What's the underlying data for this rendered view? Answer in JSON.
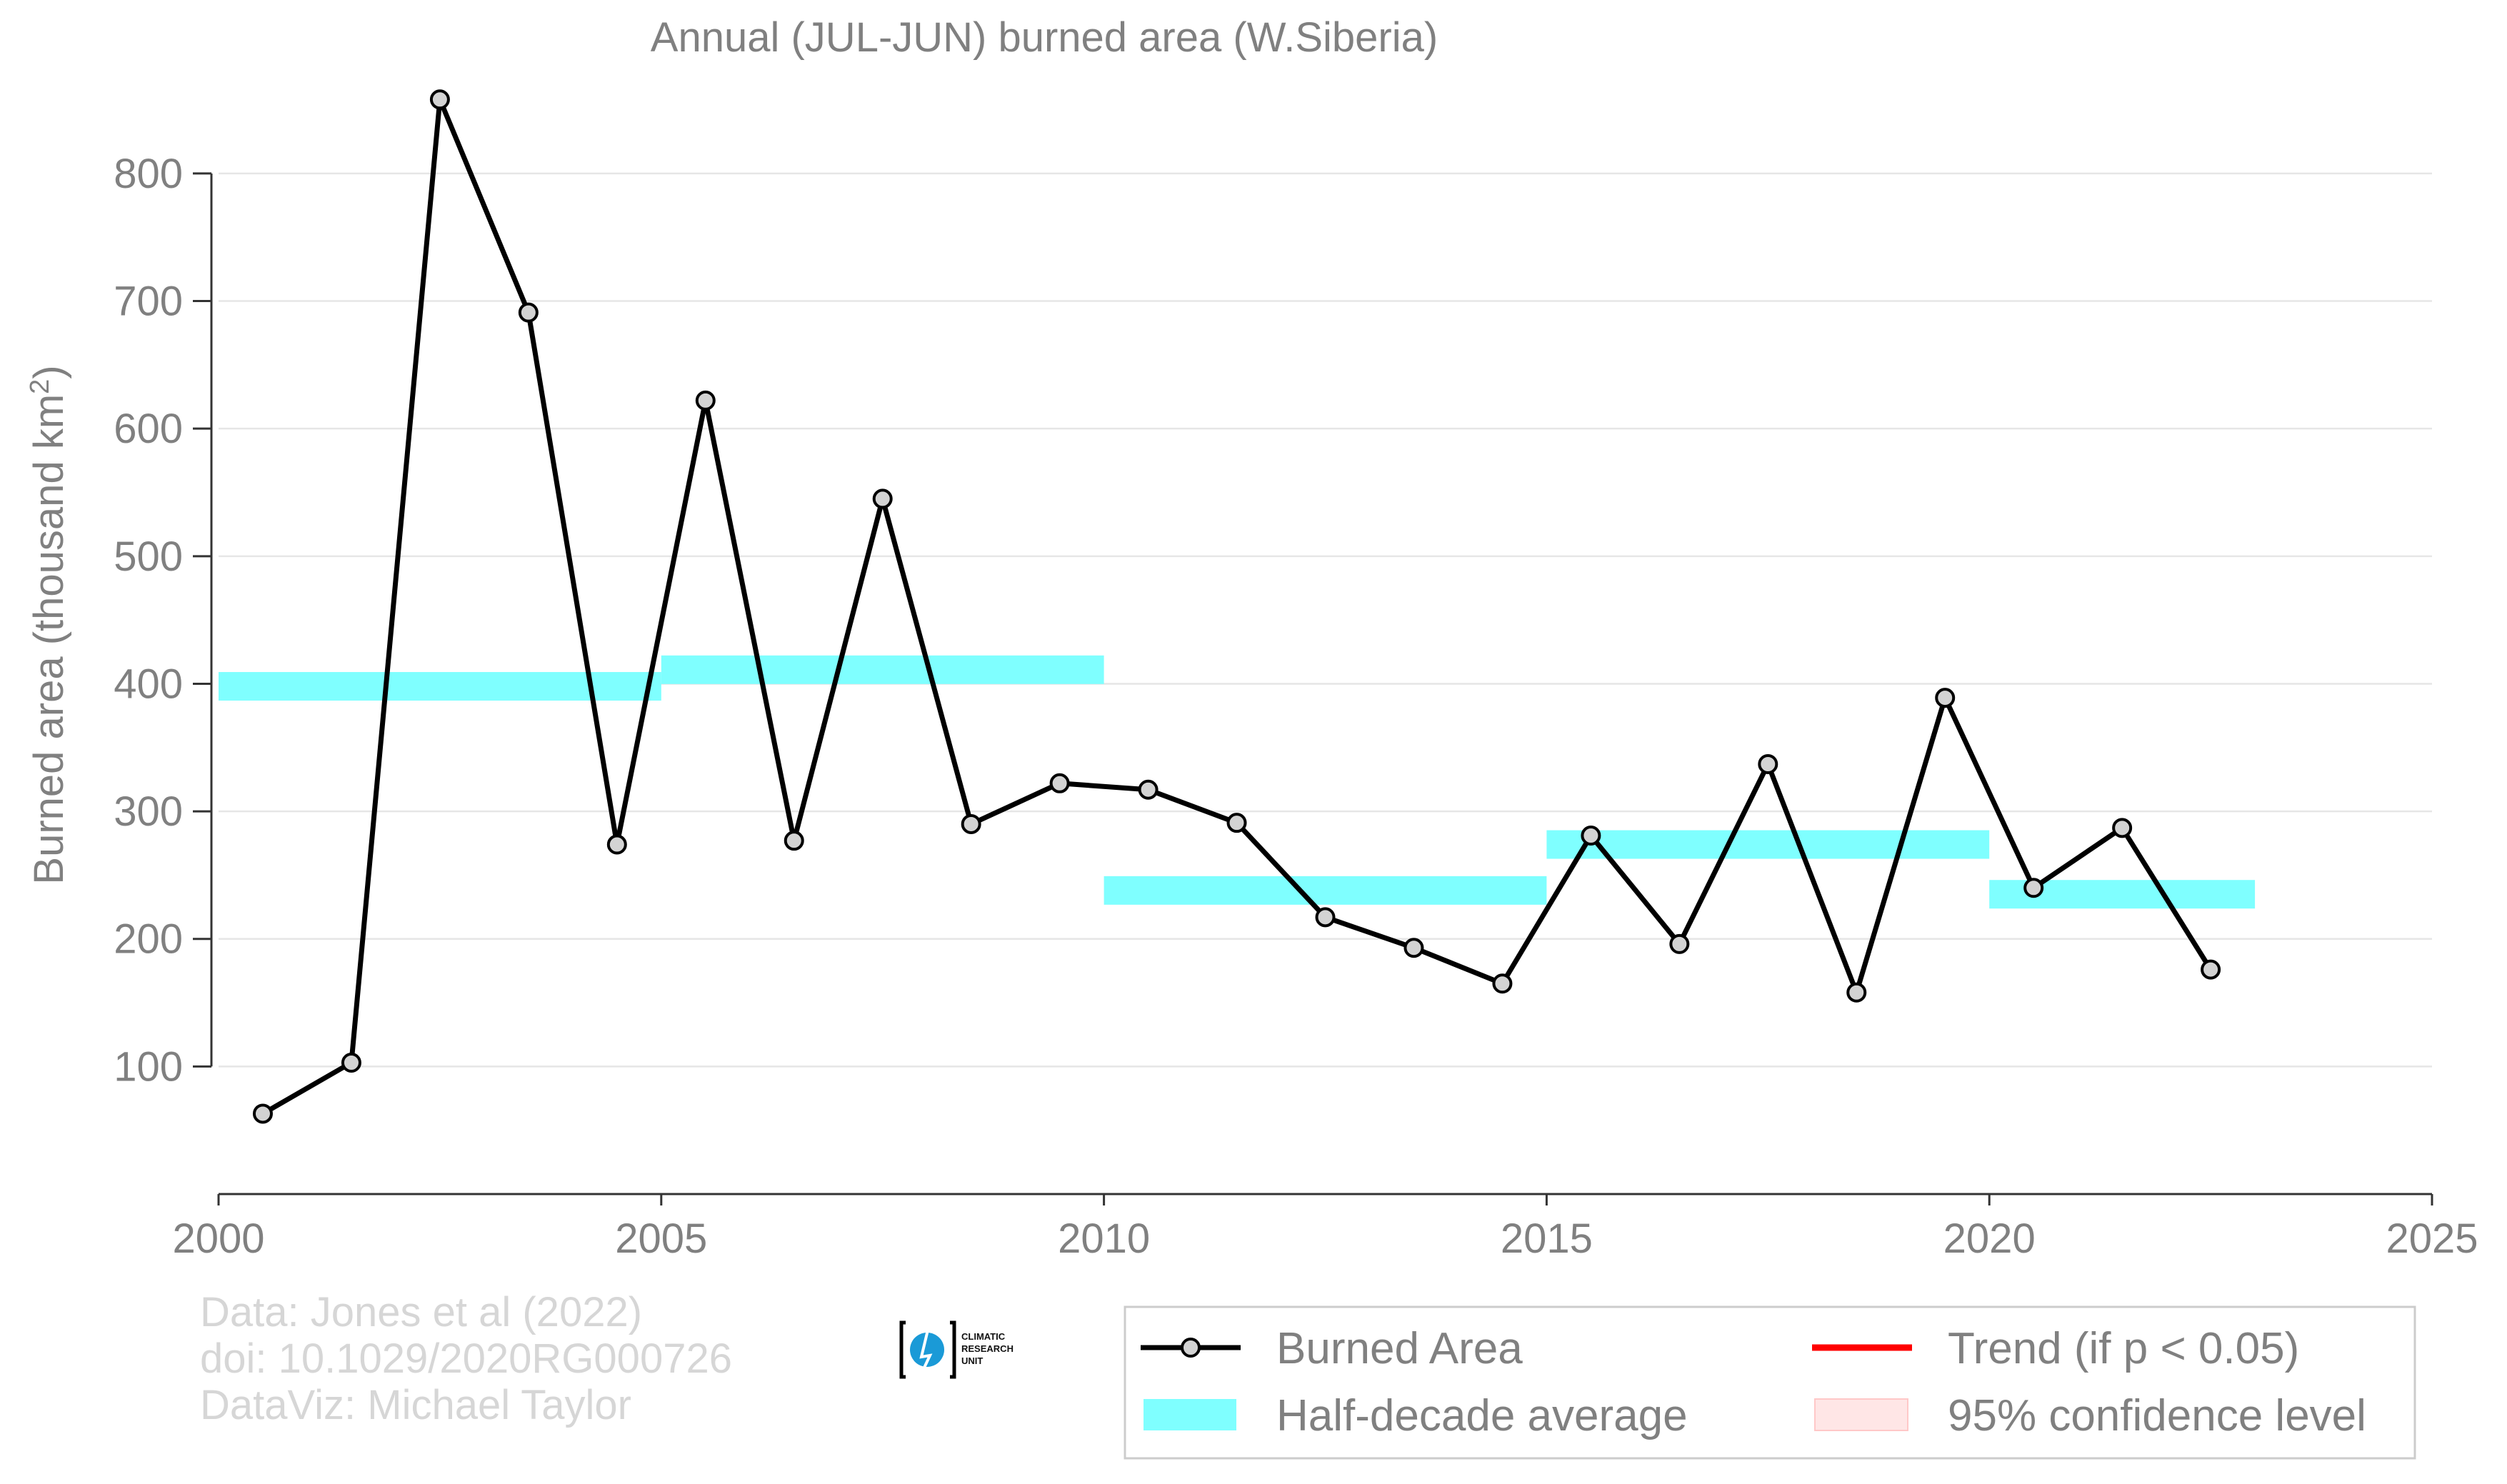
{
  "chart_data": {
    "type": "line",
    "title": "Annual (JUL-JUN) burned area (W.Siberia)",
    "ylabel": "Burned area (thousand km",
    "ylabel_superscript": "2",
    "ylabel_close": ")",
    "xlim": [
      2000,
      2025
    ],
    "ylim": [
      0,
      880
    ],
    "x_ticks": [
      2000,
      2005,
      2010,
      2015,
      2020,
      2025
    ],
    "y_ticks": [
      100,
      200,
      300,
      400,
      500,
      600,
      700,
      800
    ],
    "grid": true,
    "series": [
      {
        "name": "Burned Area",
        "color": "#000000",
        "marker_fill": "#d3d3d3",
        "x": [
          2000.5,
          2001.5,
          2002.5,
          2003.5,
          2004.5,
          2005.5,
          2006.5,
          2007.5,
          2008.5,
          2009.5,
          2010.5,
          2011.5,
          2012.5,
          2013.5,
          2014.5,
          2015.5,
          2016.5,
          2017.5,
          2018.5,
          2019.5,
          2020.5,
          2021.5,
          2022.5
        ],
        "y": [
          63,
          103,
          858,
          691,
          274,
          622,
          277,
          545,
          290,
          322,
          317,
          291,
          217,
          193,
          165,
          281,
          196,
          337,
          158,
          389,
          240,
          287,
          176
        ]
      },
      {
        "name": "Half-decade average",
        "color": "#7fffff",
        "segments": [
          {
            "x_start": 2000,
            "x_end": 2005,
            "y": 398
          },
          {
            "x_start": 2005,
            "x_end": 2010,
            "y": 411
          },
          {
            "x_start": 2010,
            "x_end": 2015,
            "y": 238
          },
          {
            "x_start": 2015,
            "x_end": 2020,
            "y": 274
          },
          {
            "x_start": 2020,
            "x_end": 2023,
            "y": 235
          }
        ]
      }
    ],
    "legend": {
      "position": "bottom-right",
      "entries": [
        {
          "label": "Burned Area",
          "kind": "line-marker",
          "color": "#000000"
        },
        {
          "label": "Trend (if p < 0.05)",
          "kind": "line",
          "color": "#ff0000"
        },
        {
          "label": "Half-decade average",
          "kind": "band",
          "color": "#7fffff"
        },
        {
          "label": "95% confidence level",
          "kind": "band",
          "color": "#ffe6e6"
        }
      ]
    }
  },
  "credits": {
    "line1": "Data: Jones et al (2022)",
    "line2": "doi: 10.1029/2020RG000726",
    "line3": "DataViz: Michael Taylor"
  },
  "logo": {
    "line1": "CLIMATIC",
    "line2": "RESEARCH",
    "line3": "UNIT"
  }
}
